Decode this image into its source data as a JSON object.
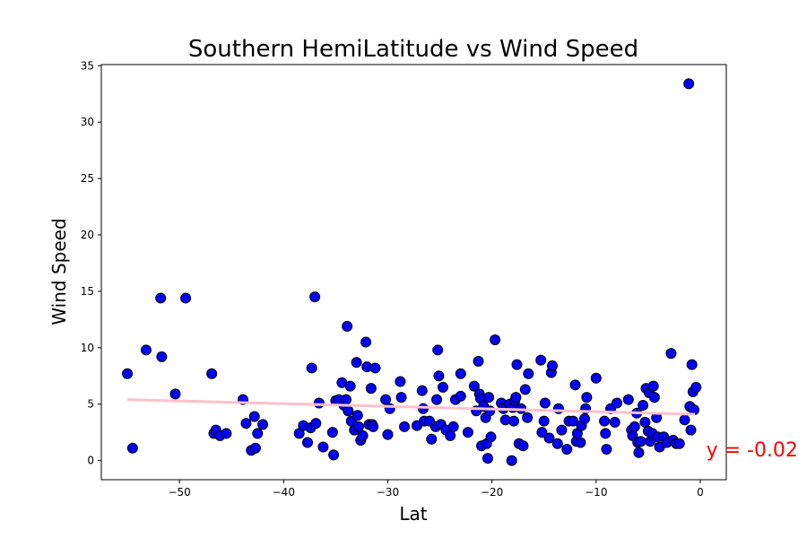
{
  "chart_data": {
    "type": "scatter",
    "title": "Southern HemiLatitude vs Wind Speed",
    "xlabel": "Lat",
    "ylabel": "Wind Speed",
    "xlim": [
      -57.5,
      2.5
    ],
    "ylim": [
      -1.7,
      35.1
    ],
    "xticks": [
      -50,
      -40,
      -30,
      -20,
      -10,
      0
    ],
    "xtick_labels": [
      "−50",
      "−40",
      "−30",
      "−20",
      "−10",
      "0"
    ],
    "yticks": [
      0,
      5,
      10,
      15,
      20,
      25,
      30,
      35
    ],
    "ytick_labels": [
      "0",
      "5",
      "10",
      "15",
      "20",
      "25",
      "30",
      "35"
    ],
    "grid": false,
    "marker_color": "#0000ff",
    "marker_edge_color": "#000000",
    "regression_color": "#ffc0cb",
    "annotation_color": "#ff0000",
    "regression": {
      "x": [
        -55,
        -0.5
      ],
      "y": [
        5.4,
        4.1
      ]
    },
    "annotation": {
      "text": "y = -0.02",
      "x": 1,
      "y": 1
    },
    "points": [
      [
        -55,
        7.7
      ],
      [
        -54.5,
        1.1
      ],
      [
        -53.2,
        9.8
      ],
      [
        -51.8,
        14.4
      ],
      [
        -51.7,
        9.2
      ],
      [
        -50.4,
        5.9
      ],
      [
        -49.4,
        14.4
      ],
      [
        -46.9,
        7.7
      ],
      [
        -46.7,
        2.4
      ],
      [
        -46.5,
        2.7
      ],
      [
        -46.1,
        2.2
      ],
      [
        -45.5,
        2.4
      ],
      [
        -43.9,
        5.4
      ],
      [
        -43.6,
        3.3
      ],
      [
        -43.1,
        0.9
      ],
      [
        -42.8,
        3.9
      ],
      [
        -42.7,
        1.1
      ],
      [
        -42.5,
        2.4
      ],
      [
        -42.0,
        3.2
      ],
      [
        -38.5,
        2.4
      ],
      [
        -38.1,
        3.1
      ],
      [
        -37.7,
        1.6
      ],
      [
        -37.4,
        2.9
      ],
      [
        -37.3,
        8.2
      ],
      [
        -37.0,
        14.5
      ],
      [
        -36.9,
        3.3
      ],
      [
        -36.6,
        5.1
      ],
      [
        -36.2,
        1.2
      ],
      [
        -35.3,
        2.5
      ],
      [
        -35.2,
        0.5
      ],
      [
        -35.0,
        5.3
      ],
      [
        -34.7,
        5.4
      ],
      [
        -34.4,
        6.9
      ],
      [
        -34.2,
        4.9
      ],
      [
        -34.0,
        5.4
      ],
      [
        -33.9,
        11.9
      ],
      [
        -33.8,
        4.4
      ],
      [
        -33.6,
        6.6
      ],
      [
        -33.5,
        3.5
      ],
      [
        -33.2,
        2.7
      ],
      [
        -33.0,
        8.7
      ],
      [
        -32.9,
        4.0
      ],
      [
        -32.8,
        3.0
      ],
      [
        -32.6,
        1.8
      ],
      [
        -32.4,
        2.2
      ],
      [
        -32.1,
        10.5
      ],
      [
        -32.0,
        8.3
      ],
      [
        -31.8,
        3.2
      ],
      [
        -31.6,
        6.4
      ],
      [
        -31.5,
        3.2
      ],
      [
        -31.4,
        3.0
      ],
      [
        -31.2,
        8.2
      ],
      [
        -30.2,
        5.4
      ],
      [
        -30.0,
        2.3
      ],
      [
        -29.8,
        4.6
      ],
      [
        -28.8,
        7.0
      ],
      [
        -28.7,
        5.6
      ],
      [
        -28.4,
        3.0
      ],
      [
        -27.2,
        3.1
      ],
      [
        -26.7,
        6.2
      ],
      [
        -26.6,
        4.6
      ],
      [
        -26.5,
        3.5
      ],
      [
        -26.0,
        3.5
      ],
      [
        -25.8,
        1.9
      ],
      [
        -25.4,
        3.0
      ],
      [
        -25.3,
        5.4
      ],
      [
        -25.2,
        9.8
      ],
      [
        -25.1,
        7.5
      ],
      [
        -24.9,
        3.2
      ],
      [
        -24.7,
        6.5
      ],
      [
        -24.4,
        2.7
      ],
      [
        -24.0,
        2.2
      ],
      [
        -23.7,
        3.0
      ],
      [
        -23.5,
        5.4
      ],
      [
        -23.0,
        5.7
      ],
      [
        -23.0,
        7.7
      ],
      [
        -22.3,
        2.5
      ],
      [
        -21.7,
        6.6
      ],
      [
        -21.5,
        4.4
      ],
      [
        -21.3,
        8.8
      ],
      [
        -21.2,
        5.9
      ],
      [
        -21.1,
        5.5
      ],
      [
        -21.0,
        1.3
      ],
      [
        -20.8,
        4.8
      ],
      [
        -20.6,
        3.8
      ],
      [
        -20.5,
        1.5
      ],
      [
        -20.4,
        0.2
      ],
      [
        -20.3,
        5.6
      ],
      [
        -20.2,
        4.4
      ],
      [
        -20.1,
        2.1
      ],
      [
        -19.7,
        10.7
      ],
      [
        -19.1,
        5.1
      ],
      [
        -18.9,
        4.6
      ],
      [
        -18.7,
        3.6
      ],
      [
        -18.3,
        5.0
      ],
      [
        -18.1,
        0.0
      ],
      [
        -18.0,
        4.7
      ],
      [
        -17.9,
        3.5
      ],
      [
        -17.8,
        5.3
      ],
      [
        -17.7,
        5.6
      ],
      [
        -17.6,
        8.5
      ],
      [
        -17.4,
        1.5
      ],
      [
        -17.2,
        4.6
      ],
      [
        -17.0,
        1.3
      ],
      [
        -16.8,
        6.3
      ],
      [
        -16.6,
        3.8
      ],
      [
        -16.5,
        7.7
      ],
      [
        -15.3,
        8.9
      ],
      [
        -15.2,
        2.5
      ],
      [
        -15.0,
        3.5
      ],
      [
        -14.9,
        5.1
      ],
      [
        -14.5,
        2.0
      ],
      [
        -14.3,
        7.8
      ],
      [
        -14.2,
        8.4
      ],
      [
        -13.7,
        1.5
      ],
      [
        -13.6,
        4.6
      ],
      [
        -13.3,
        2.7
      ],
      [
        -12.8,
        1.0
      ],
      [
        -12.6,
        3.5
      ],
      [
        -12.2,
        3.5
      ],
      [
        -12.0,
        6.7
      ],
      [
        -11.9,
        1.7
      ],
      [
        -11.8,
        2.4
      ],
      [
        -11.5,
        1.6
      ],
      [
        -11.4,
        3.1
      ],
      [
        -11.1,
        3.7
      ],
      [
        -11.0,
        4.6
      ],
      [
        -10.9,
        5.6
      ],
      [
        -10.0,
        7.3
      ],
      [
        -9.2,
        3.5
      ],
      [
        -9.1,
        2.4
      ],
      [
        -9.0,
        1.0
      ],
      [
        -8.6,
        4.6
      ],
      [
        -8.2,
        3.4
      ],
      [
        -8.0,
        5.1
      ],
      [
        -6.9,
        5.4
      ],
      [
        -6.6,
        2.7
      ],
      [
        -6.5,
        2.2
      ],
      [
        -6.3,
        3.0
      ],
      [
        -6.1,
        4.2
      ],
      [
        -6.0,
        1.6
      ],
      [
        -5.9,
        0.7
      ],
      [
        -5.7,
        1.7
      ],
      [
        -5.5,
        4.9
      ],
      [
        -5.3,
        3.4
      ],
      [
        -5.2,
        6.4
      ],
      [
        -5.0,
        2.6
      ],
      [
        -4.9,
        6.0
      ],
      [
        -4.8,
        1.7
      ],
      [
        -4.6,
        2.4
      ],
      [
        -4.5,
        6.6
      ],
      [
        -4.4,
        5.6
      ],
      [
        -4.2,
        3.8
      ],
      [
        -4.1,
        2.1
      ],
      [
        -3.9,
        1.2
      ],
      [
        -3.5,
        2.1
      ],
      [
        -3.2,
        1.6
      ],
      [
        -2.8,
        9.5
      ],
      [
        -2.6,
        1.8
      ],
      [
        -2.3,
        1.5
      ],
      [
        -2.0,
        1.5
      ],
      [
        -1.5,
        3.6
      ],
      [
        -1.1,
        33.4
      ],
      [
        -1.0,
        4.8
      ],
      [
        -0.9,
        2.7
      ],
      [
        -0.8,
        8.5
      ],
      [
        -0.7,
        6.1
      ],
      [
        -0.6,
        4.5
      ],
      [
        -0.4,
        6.5
      ]
    ]
  }
}
